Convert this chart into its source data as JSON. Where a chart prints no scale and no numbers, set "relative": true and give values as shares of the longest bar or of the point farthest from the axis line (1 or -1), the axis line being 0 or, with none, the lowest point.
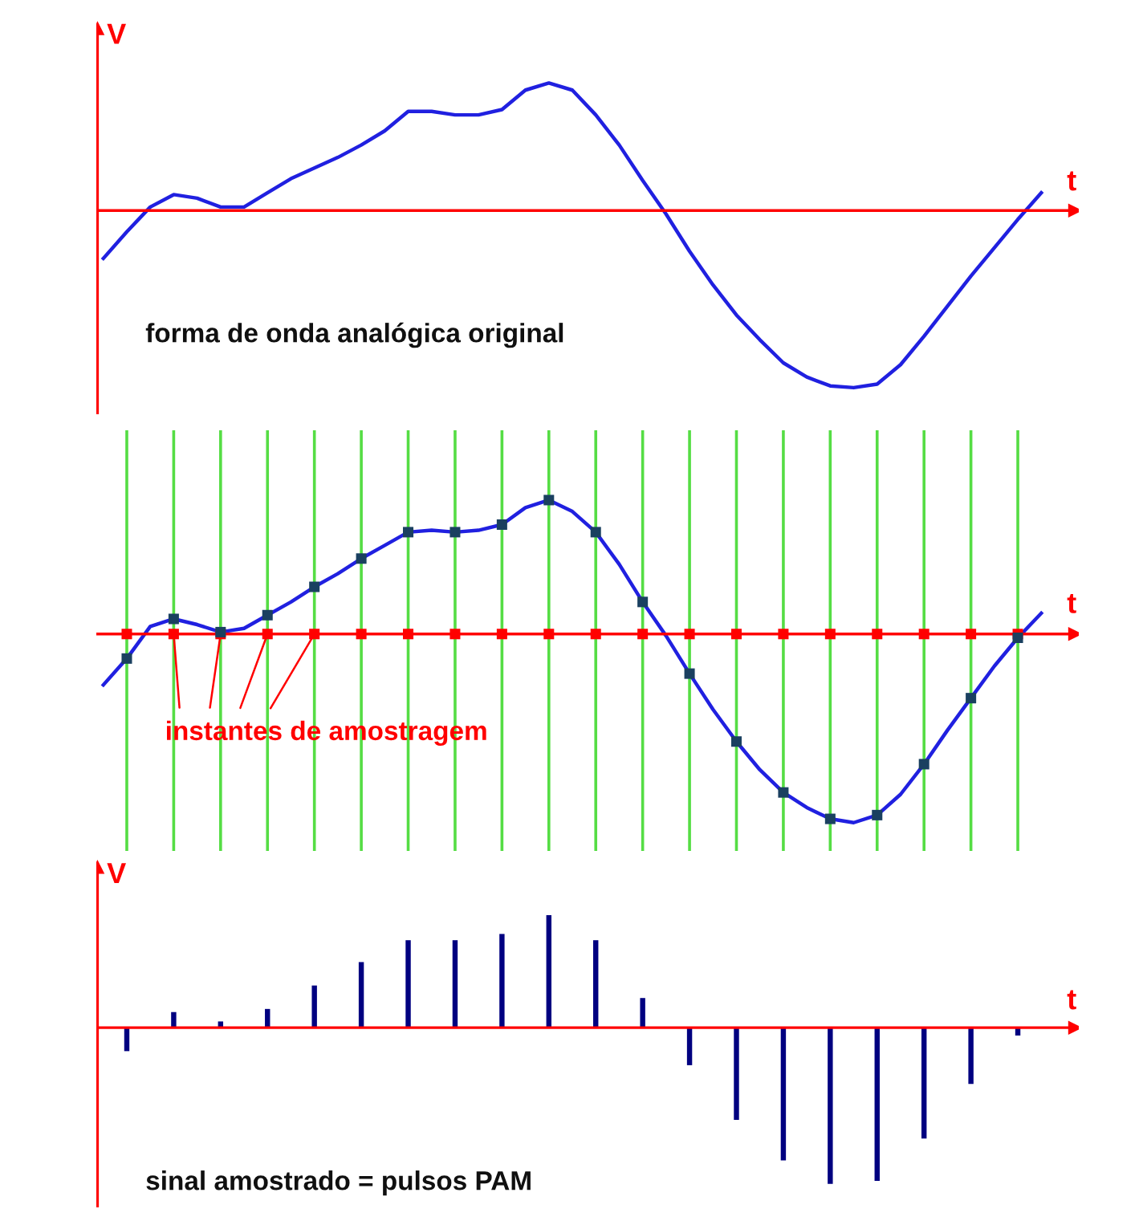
{
  "chart_data": [
    {
      "type": "line",
      "relative": true,
      "xlabel": "t",
      "ylabel": "V",
      "ref_lines": [
        {
          "axis": "y",
          "value": 0,
          "color": "#ff0000"
        }
      ],
      "categories": [
        null,
        null,
        null,
        null,
        null,
        null,
        null,
        null,
        null,
        null,
        null,
        null,
        null,
        null,
        null,
        null,
        null,
        null,
        null,
        null,
        null,
        null,
        null,
        null,
        null,
        null,
        null,
        null,
        null,
        null,
        null,
        null,
        null,
        null,
        null,
        null,
        null,
        null,
        null,
        null,
        null
      ],
      "series": [
        {
          "color": "#2020e0",
          "values": [
            -0.27,
            -0.12,
            0.02,
            0.09,
            0.07,
            0.02,
            0.02,
            0.1,
            0.18,
            0.24,
            0.3,
            0.37,
            0.45,
            0.56,
            0.56,
            0.54,
            0.54,
            0.57,
            0.68,
            0.72,
            0.68,
            0.54,
            0.37,
            0.17,
            -0.02,
            -0.23,
            -0.42,
            -0.59,
            -0.73,
            -0.86,
            -0.94,
            -0.99,
            -1,
            -0.98,
            -0.87,
            -0.71,
            -0.54,
            -0.37,
            -0.21,
            -0.05,
            0.1
          ]
        }
      ],
      "annotations": [
        "forma de onda analógica original"
      ]
    },
    {
      "type": "line",
      "relative": true,
      "xlabel": "t",
      "grid": "x",
      "ref_lines": [
        {
          "axis": "y",
          "value": 0,
          "color": "#ff0000"
        }
      ],
      "categories": [
        null,
        null,
        null,
        null,
        null,
        null,
        null,
        null,
        null,
        null,
        null,
        null,
        null,
        null,
        null,
        null,
        null,
        null,
        null,
        null,
        null,
        null,
        null,
        null,
        null,
        null,
        null,
        null,
        null,
        null,
        null,
        null,
        null,
        null,
        null,
        null,
        null,
        null,
        null,
        null,
        null
      ],
      "series": [
        {
          "color": "#2020e0",
          "values": [
            -0.27,
            -0.13,
            0.04,
            0.08,
            0.05,
            0.01,
            0.03,
            0.1,
            0.17,
            0.25,
            0.32,
            0.4,
            0.47,
            0.54,
            0.55,
            0.54,
            0.55,
            0.58,
            0.67,
            0.71,
            0.65,
            0.54,
            0.37,
            0.17,
            -0.01,
            -0.21,
            -0.4,
            -0.57,
            -0.72,
            -0.84,
            -0.92,
            -0.98,
            -1,
            -0.96,
            -0.85,
            -0.69,
            -0.51,
            -0.34,
            -0.17,
            -0.02,
            0.11
          ]
        },
        {
          "type": "scatter",
          "marker": "square",
          "color": "#ff0000",
          "values": [
            null,
            0,
            null,
            0,
            null,
            0,
            null,
            0,
            null,
            0,
            null,
            0,
            null,
            0,
            null,
            0,
            null,
            0,
            null,
            0,
            null,
            0,
            null,
            0,
            null,
            0,
            null,
            0,
            null,
            0,
            null,
            0,
            null,
            0,
            null,
            0,
            null,
            0,
            null,
            0,
            null
          ]
        },
        {
          "type": "scatter",
          "marker": "square",
          "color": "#1a4060",
          "values": [
            null,
            -0.13,
            null,
            0.08,
            null,
            0.01,
            null,
            0.1,
            null,
            0.25,
            null,
            0.4,
            null,
            0.54,
            null,
            0.54,
            null,
            0.58,
            null,
            0.71,
            null,
            0.54,
            null,
            0.17,
            null,
            -0.21,
            null,
            -0.57,
            null,
            -0.84,
            null,
            -0.98,
            null,
            -0.96,
            null,
            -0.69,
            null,
            -0.34,
            null,
            -0.02,
            null
          ]
        }
      ],
      "annotations": [
        "instantes de amostragem"
      ]
    },
    {
      "type": "bar",
      "relative": true,
      "xlabel": "t",
      "ylabel": "V",
      "ref_lines": [
        {
          "axis": "y",
          "value": 0,
          "color": "#ff0000"
        }
      ],
      "categories": [
        null,
        null,
        null,
        null,
        null,
        null,
        null,
        null,
        null,
        null,
        null,
        null,
        null,
        null,
        null,
        null,
        null,
        null,
        null,
        null,
        null,
        null,
        null,
        null,
        null,
        null,
        null,
        null,
        null,
        null,
        null,
        null,
        null,
        null,
        null,
        null,
        null,
        null,
        null,
        null,
        null
      ],
      "series": [
        {
          "color": "#000080",
          "values": [
            null,
            -0.15,
            null,
            0.1,
            null,
            0.04,
            null,
            0.12,
            null,
            0.27,
            null,
            0.42,
            null,
            0.56,
            null,
            0.56,
            null,
            0.6,
            null,
            0.72,
            null,
            0.56,
            null,
            0.19,
            null,
            -0.24,
            null,
            -0.59,
            null,
            -0.85,
            null,
            -1,
            null,
            -0.98,
            null,
            -0.71,
            null,
            -0.36,
            null,
            -0.05,
            null
          ]
        }
      ],
      "annotations": [
        "sinal amostrado = pulsos PAM"
      ]
    }
  ]
}
